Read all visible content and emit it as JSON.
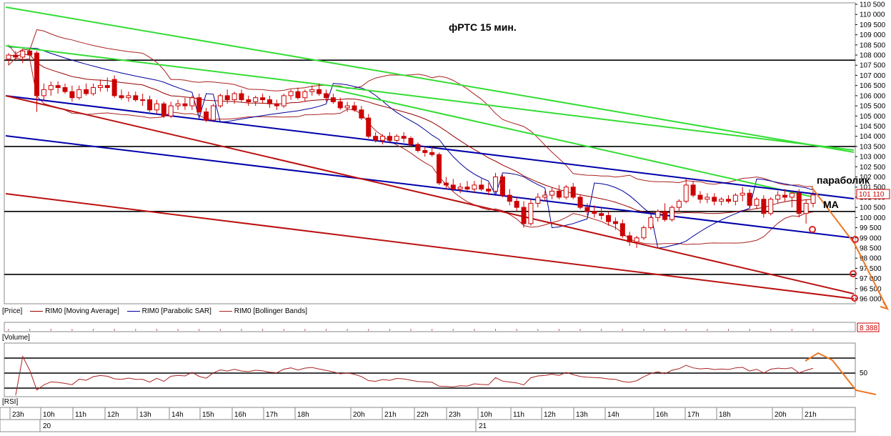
{
  "chart_data": {
    "type": "candlestick",
    "title": "фРТС   15 мин.",
    "instrument": "RIM0",
    "price_axis": {
      "min": 96000,
      "max": 110500,
      "ticks": [
        "110 500",
        "110 000",
        "109 500",
        "109 000",
        "108 500",
        "108 000",
        "107 500",
        "107 000",
        "106 500",
        "106 000",
        "105 500",
        "105 000",
        "104 500",
        "104 000",
        "103 500",
        "103 000",
        "102 500",
        "102 000",
        "101 500",
        "101 000",
        "100 500",
        "100 000",
        "99 500",
        "99 000",
        "98 500",
        "98 000",
        "97 500",
        "97 000",
        "96 500",
        "96 000"
      ]
    },
    "last_price_label": "101 110",
    "annotations": {
      "parabolic": "параболик",
      "ma": "MA"
    },
    "time_axis": {
      "labels": [
        "23h",
        "10h",
        "11h",
        "12h",
        "13h",
        "14h",
        "15h",
        "16h",
        "17h",
        "18h",
        "20h",
        "21h",
        "22h",
        "23h",
        "10h",
        "11h",
        "12h",
        "13h",
        "14h",
        "16h",
        "17h",
        "18h",
        "20h",
        "21h"
      ],
      "dates": [
        "20",
        "21"
      ]
    },
    "legend": {
      "price_panel": "[Price]",
      "items": [
        "RIM0 [Moving Average]",
        "RIM0 [Parabolic SAR]",
        "RIM0 [Bollinger Bands]"
      ]
    },
    "volume_panel": {
      "label": "[Volume]",
      "value_label": "8 388"
    },
    "rsi_panel": {
      "label": "[RSI]",
      "level_label": "50"
    },
    "colors": {
      "candle_down": "#cc0000",
      "candle_up": "#cc0000",
      "ma": "#990000",
      "sar": "#000099",
      "bollinger": "#aa2222",
      "green_trend": "#33dd33",
      "blue_trend": "#0000aa",
      "red_trend": "#bb1111",
      "forecast": "#ee7722"
    },
    "candles": [
      [
        107800,
        108100,
        107500,
        108000
      ],
      [
        108000,
        108200,
        107700,
        107900
      ],
      [
        107900,
        108300,
        107600,
        108200
      ],
      [
        108200,
        108300,
        107800,
        108000
      ],
      [
        108100,
        108200,
        105200,
        106000
      ],
      [
        106000,
        106600,
        105800,
        106300
      ],
      [
        106300,
        106700,
        106000,
        106500
      ],
      [
        106500,
        106700,
        106100,
        106400
      ],
      [
        106400,
        106600,
        106100,
        106200
      ],
      [
        106200,
        106500,
        105700,
        105900
      ],
      [
        105900,
        106500,
        105800,
        106300
      ],
      [
        106300,
        106600,
        106000,
        106100
      ],
      [
        106100,
        106600,
        106000,
        106400
      ],
      [
        106400,
        106800,
        106200,
        106500
      ],
      [
        106500,
        106900,
        106200,
        106400
      ],
      [
        106800,
        107000,
        105900,
        106000
      ],
      [
        106000,
        106300,
        105800,
        105900
      ],
      [
        105900,
        106200,
        105700,
        106000
      ],
      [
        106000,
        106200,
        105700,
        105800
      ],
      [
        105800,
        106100,
        105500,
        105800
      ],
      [
        105800,
        106000,
        105200,
        105300
      ],
      [
        105300,
        105800,
        105100,
        105600
      ],
      [
        105600,
        105700,
        104900,
        105000
      ],
      [
        105000,
        105700,
        104900,
        105500
      ],
      [
        105500,
        105800,
        105300,
        105600
      ],
      [
        105600,
        105900,
        105300,
        105500
      ],
      [
        105500,
        106000,
        105300,
        105900
      ],
      [
        105900,
        106100,
        105100,
        105200
      ],
      [
        105200,
        105400,
        104700,
        104800
      ],
      [
        104800,
        105600,
        104700,
        105500
      ],
      [
        105500,
        106100,
        105400,
        106000
      ],
      [
        106000,
        106300,
        105600,
        105800
      ],
      [
        105800,
        106200,
        105600,
        106100
      ],
      [
        106100,
        106300,
        105700,
        105800
      ],
      [
        105800,
        106000,
        105500,
        105700
      ],
      [
        105700,
        106000,
        105500,
        105900
      ],
      [
        105900,
        106100,
        105600,
        105800
      ],
      [
        105800,
        106000,
        105400,
        105600
      ],
      [
        105600,
        105800,
        105300,
        105500
      ],
      [
        105500,
        106100,
        105400,
        106000
      ],
      [
        106000,
        106300,
        105800,
        106200
      ],
      [
        106200,
        106400,
        105800,
        105900
      ],
      [
        105900,
        106300,
        105700,
        106200
      ],
      [
        106200,
        106500,
        106000,
        106300
      ],
      [
        106300,
        106600,
        106000,
        106100
      ],
      [
        106100,
        106300,
        105700,
        105900
      ],
      [
        105900,
        106100,
        105600,
        105700
      ],
      [
        105700,
        105900,
        105300,
        105400
      ],
      [
        105400,
        105700,
        105200,
        105500
      ],
      [
        105500,
        105700,
        105200,
        105300
      ],
      [
        105300,
        105500,
        104800,
        104900
      ],
      [
        104900,
        105100,
        103900,
        104000
      ],
      [
        104000,
        104200,
        103700,
        103800
      ],
      [
        103800,
        104100,
        103600,
        104000
      ],
      [
        104000,
        104200,
        103700,
        103800
      ],
      [
        103800,
        104100,
        103700,
        104000
      ],
      [
        104000,
        104200,
        103700,
        103900
      ],
      [
        103900,
        104000,
        103500,
        103600
      ],
      [
        103600,
        103700,
        103200,
        103300
      ],
      [
        103300,
        103500,
        103000,
        103200
      ],
      [
        103200,
        103500,
        103000,
        103100
      ],
      [
        103100,
        103200,
        101600,
        101700
      ],
      [
        101700,
        102000,
        101400,
        101600
      ],
      [
        101600,
        101900,
        101300,
        101400
      ],
      [
        101400,
        101700,
        101200,
        101500
      ],
      [
        101500,
        101800,
        101300,
        101400
      ],
      [
        101400,
        101800,
        101200,
        101600
      ],
      [
        101600,
        101900,
        101300,
        101400
      ],
      [
        101400,
        101700,
        101100,
        101300
      ],
      [
        101300,
        102200,
        101200,
        102000
      ],
      [
        102000,
        102100,
        101000,
        101100
      ],
      [
        101100,
        101400,
        100600,
        100800
      ],
      [
        100800,
        101000,
        100300,
        100500
      ],
      [
        100500,
        100800,
        99500,
        99700
      ],
      [
        99700,
        100900,
        99600,
        100700
      ],
      [
        100700,
        101200,
        100500,
        101000
      ],
      [
        101000,
        101300,
        100800,
        101100
      ],
      [
        101100,
        101500,
        100900,
        101300
      ],
      [
        101300,
        101600,
        100900,
        101000
      ],
      [
        101000,
        101600,
        100900,
        101500
      ],
      [
        101500,
        101700,
        100900,
        101000
      ],
      [
        101000,
        101100,
        100400,
        100500
      ],
      [
        100500,
        100700,
        100100,
        100300
      ],
      [
        100300,
        100600,
        100000,
        100200
      ],
      [
        100200,
        100500,
        99900,
        100100
      ],
      [
        100100,
        100300,
        99600,
        99800
      ],
      [
        99800,
        100000,
        99400,
        99700
      ],
      [
        99700,
        99900,
        99000,
        99100
      ],
      [
        99100,
        99300,
        98600,
        98800
      ],
      [
        98800,
        99100,
        98500,
        99000
      ],
      [
        99000,
        99600,
        98900,
        99500
      ],
      [
        99500,
        100100,
        99400,
        100000
      ],
      [
        100000,
        100400,
        99800,
        100300
      ],
      [
        100300,
        100700,
        99800,
        99900
      ],
      [
        99900,
        100600,
        99800,
        100500
      ],
      [
        100500,
        100900,
        100300,
        100800
      ],
      [
        100800,
        101900,
        100700,
        101600
      ],
      [
        101600,
        101800,
        101000,
        101100
      ],
      [
        101100,
        101300,
        100700,
        100900
      ],
      [
        100900,
        101200,
        100700,
        101000
      ],
      [
        101000,
        101200,
        100600,
        100800
      ],
      [
        100800,
        101000,
        100600,
        100900
      ],
      [
        100900,
        101100,
        100700,
        100800
      ],
      [
        100800,
        101200,
        100600,
        101100
      ],
      [
        101100,
        101500,
        100800,
        101200
      ],
      [
        101200,
        101400,
        100500,
        100600
      ],
      [
        100600,
        101000,
        100400,
        100900
      ],
      [
        100900,
        101100,
        100000,
        100200
      ],
      [
        100200,
        101000,
        100100,
        100900
      ],
      [
        100900,
        101300,
        100700,
        101100
      ],
      [
        101100,
        101400,
        100800,
        101000
      ],
      [
        101000,
        101300,
        100500,
        101200
      ],
      [
        101200,
        101400,
        100000,
        100200
      ],
      [
        100200,
        100900,
        99700,
        100700
      ],
      [
        100700,
        101300,
        100500,
        101110
      ]
    ]
  }
}
